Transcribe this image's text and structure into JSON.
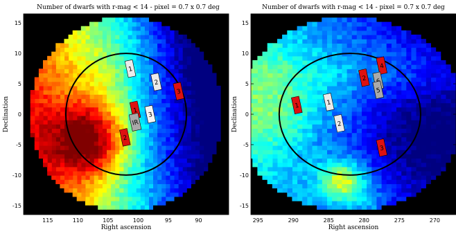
{
  "chart_data": [
    {
      "type": "heatmap",
      "title": "Number of dwarfs with r-mag < 14 - pixel = 0.7 x 0.7 deg",
      "xlabel": "Right ascension",
      "ylabel": "Declination",
      "xlim": [
        119,
        85
      ],
      "ylim": [
        -16.5,
        16.5
      ],
      "xticks": [
        "115",
        "110",
        "105",
        "100",
        "95",
        "90"
      ],
      "yticks": [
        "15",
        "10",
        "5",
        "0",
        "-5",
        "-10",
        "-15"
      ],
      "center": [
        102,
        0
      ],
      "field_radius_deg": 16,
      "circle_radius_deg": 10,
      "pixel_deg": 0.7,
      "markers": [
        {
          "label": "1",
          "x": 101.3,
          "y": 7.5,
          "color": "#ebebeb"
        },
        {
          "label": "2",
          "x": 97.0,
          "y": 5.3,
          "color": "#ebebeb"
        },
        {
          "label": "3",
          "x": 93.3,
          "y": 3.8,
          "color": "#dd1111"
        },
        {
          "label": "1",
          "x": 100.5,
          "y": 0.7,
          "color": "#dd1111"
        },
        {
          "label": "3",
          "x": 98.0,
          "y": 0.0,
          "color": "#f5f5f5"
        },
        {
          "label": "IR",
          "x": 100.5,
          "y": -1.3,
          "color": "#a9a9a9"
        },
        {
          "label": "2",
          "x": 102.2,
          "y": -3.8,
          "color": "#dd1111"
        }
      ]
    },
    {
      "type": "heatmap",
      "title": "Number of dwarfs with r-mag < 14 - pixel = 0.7 x 0.7 deg",
      "xlabel": "Right ascension",
      "ylabel": "Declination",
      "xlim": [
        296,
        267
      ],
      "ylim": [
        -16.5,
        16.5
      ],
      "xticks": [
        "295",
        "290",
        "285",
        "280",
        "275",
        "270"
      ],
      "yticks": [
        "15",
        "10",
        "5",
        "0",
        "-5",
        "-10",
        "-15"
      ],
      "center": [
        282,
        0
      ],
      "field_radius_deg": 16,
      "circle_radius_deg": 10,
      "pixel_deg": 0.7,
      "markers": [
        {
          "label": "1",
          "x": 289.5,
          "y": 1.5,
          "color": "#dd1111"
        },
        {
          "label": "1",
          "x": 285.0,
          "y": 2.0,
          "color": "#ebebeb"
        },
        {
          "label": "2",
          "x": 283.5,
          "y": -1.5,
          "color": "#ebebeb"
        },
        {
          "label": "2",
          "x": 280.0,
          "y": 6.0,
          "color": "#dd1111"
        },
        {
          "label": "4",
          "x": 277.5,
          "y": 8.0,
          "color": "#dd1111"
        },
        {
          "label": "6",
          "x": 278.0,
          "y": 5.5,
          "color": "#a9a9a9"
        },
        {
          "label": "5",
          "x": 278.0,
          "y": 4.0,
          "color": "#a9a9a9"
        },
        {
          "label": "3",
          "x": 277.5,
          "y": -5.5,
          "color": "#dd1111"
        }
      ]
    }
  ]
}
